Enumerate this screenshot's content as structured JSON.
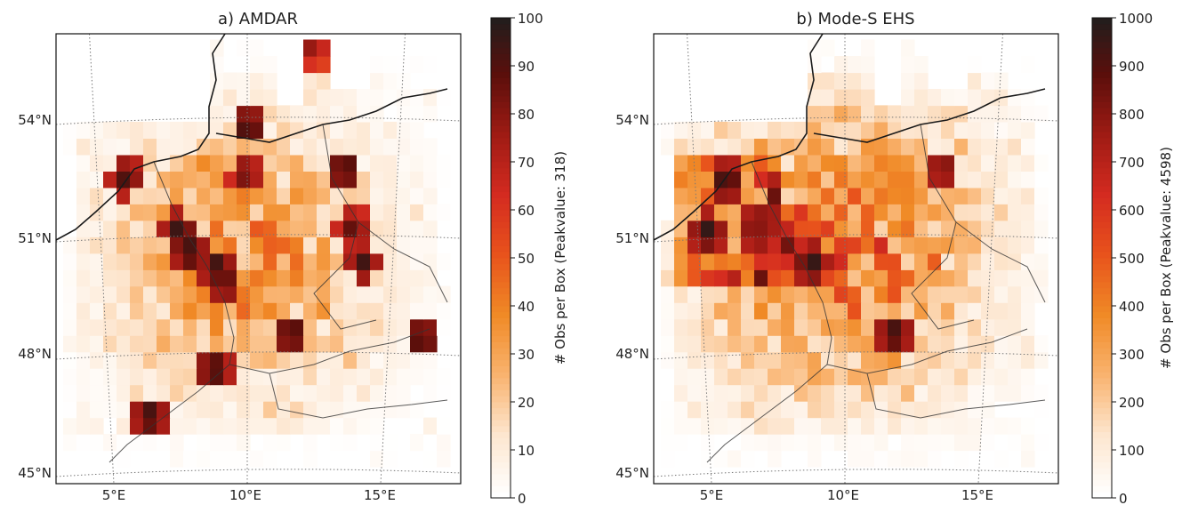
{
  "colorscale": {
    "stops": [
      "#ffffff",
      "#fde6cf",
      "#f9b36f",
      "#f08a26",
      "#e8531c",
      "#d42b20",
      "#9f1b14",
      "#5b0f0b",
      "#1e1e1e"
    ]
  },
  "chart_data": [
    {
      "type": "heatmap",
      "title": "a) AMDAR",
      "map": "gridded observation counts over central Europe",
      "xticks": [
        "5°E",
        "10°E",
        "15°E"
      ],
      "yticks": [
        "54°N",
        "51°N",
        "48°N",
        "45°N"
      ],
      "lon_range": [
        3,
        18
      ],
      "lat_range": [
        45,
        56.5
      ],
      "grid": true,
      "colorbar": {
        "label": "# Obs per Box (Peakvalue: 318)",
        "ticks": [
          "0",
          "10",
          "20",
          "30",
          "40",
          "50",
          "60",
          "70",
          "80",
          "90",
          "100"
        ],
        "range": [
          0,
          100
        ]
      },
      "hotspots": [
        {
          "lon": 9.8,
          "lat": 53.6,
          "value": 100
        },
        {
          "lon": 5.2,
          "lat": 52.3,
          "value": 95
        },
        {
          "lon": 7.2,
          "lat": 50.9,
          "value": 100
        },
        {
          "lon": 7.6,
          "lat": 50.4,
          "value": 100
        },
        {
          "lon": 8.6,
          "lat": 50.0,
          "value": 100
        },
        {
          "lon": 8.9,
          "lat": 49.6,
          "value": 95
        },
        {
          "lon": 11.4,
          "lat": 48.3,
          "value": 100
        },
        {
          "lon": 13.4,
          "lat": 52.5,
          "value": 100
        },
        {
          "lon": 16.3,
          "lat": 48.2,
          "value": 100
        },
        {
          "lon": 8.5,
          "lat": 47.4,
          "value": 100
        },
        {
          "lon": 6.1,
          "lat": 46.2,
          "value": 100
        },
        {
          "lon": 12.2,
          "lat": 55.6,
          "value": 80
        },
        {
          "lon": 13.7,
          "lat": 51.0,
          "value": 90
        },
        {
          "lon": 14.1,
          "lat": 50.1,
          "value": 95
        },
        {
          "lon": 9.7,
          "lat": 52.4,
          "value": 90
        }
      ]
    },
    {
      "type": "heatmap",
      "title": "b) Mode-S EHS",
      "map": "gridded observation counts over central Europe",
      "xticks": [
        "5°E",
        "10°E",
        "15°E"
      ],
      "yticks": [
        "54°N",
        "51°N",
        "48°N",
        "45°N"
      ],
      "lon_range": [
        3,
        18
      ],
      "lat_range": [
        45,
        56.5
      ],
      "grid": true,
      "colorbar": {
        "label": "# Obs per Box (Peakvalue: 4598)",
        "ticks": [
          "0",
          "100",
          "200",
          "300",
          "400",
          "500",
          "600",
          "700",
          "800",
          "900",
          "1000"
        ],
        "range": [
          0,
          1000
        ]
      },
      "hotspots": [
        {
          "lon": 5.3,
          "lat": 52.2,
          "value": 1000
        },
        {
          "lon": 4.6,
          "lat": 50.9,
          "value": 1000
        },
        {
          "lon": 8.5,
          "lat": 50.1,
          "value": 1000
        },
        {
          "lon": 11.6,
          "lat": 48.3,
          "value": 1000
        },
        {
          "lon": 6.8,
          "lat": 51.2,
          "value": 900
        },
        {
          "lon": 13.4,
          "lat": 52.5,
          "value": 900
        },
        {
          "lon": 7.6,
          "lat": 50.6,
          "value": 850
        }
      ]
    }
  ]
}
